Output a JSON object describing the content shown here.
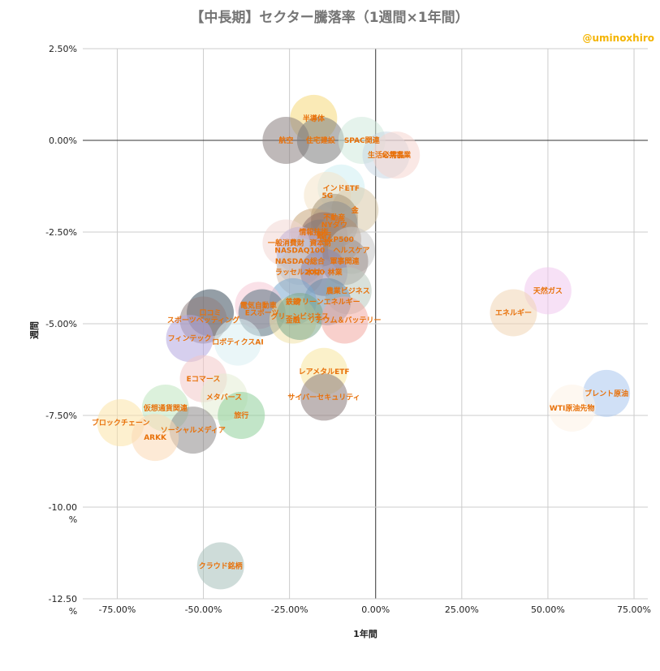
{
  "chart_data": {
    "type": "scatter",
    "title": "【中長期】セクター騰落率（1週間×1年間）",
    "credit": "@uminoxhiro",
    "xlabel": "1年間",
    "ylabel": "週間",
    "xlim": [
      -0.85,
      0.79
    ],
    "ylim": [
      -12.5,
      2.5
    ],
    "xticks": [
      {
        "v": -0.75,
        "label": "-75.00%"
      },
      {
        "v": -0.5,
        "label": "-50.00%"
      },
      {
        "v": -0.25,
        "label": "-25.00%"
      },
      {
        "v": 0.0,
        "label": "0.00%"
      },
      {
        "v": 0.25,
        "label": "25.00%"
      },
      {
        "v": 0.5,
        "label": "50.00%"
      },
      {
        "v": 0.75,
        "label": "75.00%"
      }
    ],
    "yticks": [
      {
        "v": 2.5,
        "label": "2.50%"
      },
      {
        "v": 0,
        "label": "0.00%"
      },
      {
        "v": -2.5,
        "label": "-2.50%"
      },
      {
        "v": -5,
        "label": "-5.00%"
      },
      {
        "v": -7.5,
        "label": "-7.50%"
      },
      {
        "v": -10,
        "label": "-10.00",
        "label2": "%"
      },
      {
        "v": -12.5,
        "label": "-12.50",
        "label2": "%"
      }
    ],
    "points": [
      {
        "label": "半導体",
        "x": -0.18,
        "y": 0.6,
        "color": "#f6d87a"
      },
      {
        "label": "航空",
        "x": -0.26,
        "y": 0.0,
        "color": "#8a7f80"
      },
      {
        "label": "住宅建設",
        "x": -0.16,
        "y": 0.0,
        "color": "#7b7b7b"
      },
      {
        "label": "SPAC関連",
        "x": -0.04,
        "y": 0.0,
        "color": "#cfe9dc"
      },
      {
        "label": "生活必需品",
        "x": 0.03,
        "y": -0.4,
        "color": "#c9d7e4"
      },
      {
        "label": "公共事業",
        "x": 0.06,
        "y": -0.4,
        "color": "#f6d6d0"
      },
      {
        "label": "インドETF",
        "x": -0.1,
        "y": -1.3,
        "color": "#cdeef2"
      },
      {
        "label": "5G",
        "x": -0.14,
        "y": -1.5,
        "color": "#f4e3c8"
      },
      {
        "label": "金",
        "x": -0.06,
        "y": -1.9,
        "color": "#d9c9a7"
      },
      {
        "label": "不動産",
        "x": -0.12,
        "y": -2.1,
        "color": "#a89878"
      },
      {
        "label": "NYダウ",
        "x": -0.12,
        "y": -2.3,
        "color": "#8f8f8f"
      },
      {
        "label": "情報技術",
        "x": -0.18,
        "y": -2.5,
        "color": "#c9a57a"
      },
      {
        "label": "銀行",
        "x": -0.15,
        "y": -2.6,
        "color": "#8f6f6a"
      },
      {
        "label": "資本財",
        "x": -0.16,
        "y": -2.8,
        "color": "#8a7e7a"
      },
      {
        "label": "S&P500",
        "x": -0.11,
        "y": -2.7,
        "color": "#ad8f78"
      },
      {
        "label": "一般消費財",
        "x": -0.26,
        "y": -2.8,
        "color": "#f3d7d3"
      },
      {
        "label": "NASDAQ100",
        "x": -0.22,
        "y": -3.0,
        "color": "#c5b3d6"
      },
      {
        "label": "ヘルスケア",
        "x": -0.07,
        "y": -3.0,
        "color": "#c8c8c8"
      },
      {
        "label": "軍事関連",
        "x": -0.09,
        "y": -3.3,
        "color": "#9c8f8c"
      },
      {
        "label": "NASDAQ総合",
        "x": -0.22,
        "y": -3.3,
        "color": "#b9c8da"
      },
      {
        "label": "ラッセル2000",
        "x": -0.22,
        "y": -3.6,
        "color": "#d0c0b5"
      },
      {
        "label": "木材・林業",
        "x": -0.15,
        "y": -3.6,
        "color": "#8f86a8"
      },
      {
        "label": "農業ビジネス",
        "x": -0.08,
        "y": -4.1,
        "color": "#b9c9be"
      },
      {
        "label": "クリーンエネルギー",
        "x": -0.14,
        "y": -4.4,
        "color": "#6f8ea8"
      },
      {
        "label": "鉄鋼",
        "x": -0.24,
        "y": -4.4,
        "color": "#7baacf"
      },
      {
        "label": "電気自動車",
        "x": -0.34,
        "y": -4.5,
        "color": "#f5c9d6"
      },
      {
        "label": "Eスポーツ",
        "x": -0.33,
        "y": -4.7,
        "color": "#5a7280"
      },
      {
        "label": "口コミ",
        "x": -0.48,
        "y": -4.7,
        "color": "#3c4f5d"
      },
      {
        "label": "スポーツベッティング",
        "x": -0.5,
        "y": -4.9,
        "color": "#8f8080"
      },
      {
        "label": "金融",
        "x": -0.24,
        "y": -4.9,
        "color": "#f0e2a8"
      },
      {
        "label": "グリーンビジネス",
        "x": -0.22,
        "y": -4.8,
        "color": "#7ba88a"
      },
      {
        "label": "リチウム＆バッテリー",
        "x": -0.09,
        "y": -4.9,
        "color": "#f2a9a3"
      },
      {
        "label": "フィンテック",
        "x": -0.54,
        "y": -5.4,
        "color": "#b4a7e0"
      },
      {
        "label": "ロボティクスAI",
        "x": -0.4,
        "y": -5.5,
        "color": "#d9eef2"
      },
      {
        "label": "Eコマース",
        "x": -0.5,
        "y": -6.5,
        "color": "#f3c9c9"
      },
      {
        "label": "レアメタルETF",
        "x": -0.15,
        "y": -6.3,
        "color": "#f7e59e"
      },
      {
        "label": "サイバーセキュリティ",
        "x": -0.15,
        "y": -7.0,
        "color": "#8a7a7a"
      },
      {
        "label": "メタバース",
        "x": -0.44,
        "y": -7.0,
        "color": "#e4ecd4"
      },
      {
        "label": "仮想通貨関連",
        "x": -0.61,
        "y": -7.3,
        "color": "#bfe5bf"
      },
      {
        "label": "旅行",
        "x": -0.39,
        "y": -7.5,
        "color": "#8fd09a"
      },
      {
        "label": "ブロックチェーン",
        "x": -0.74,
        "y": -7.7,
        "color": "#fbe3a8"
      },
      {
        "label": "ソーシャルメディア",
        "x": -0.53,
        "y": -7.9,
        "color": "#8e8a8a"
      },
      {
        "label": "ARKK",
        "x": -0.64,
        "y": -8.1,
        "color": "#fbd9b5"
      },
      {
        "label": "天然ガス",
        "x": 0.5,
        "y": -4.1,
        "color": "#f1c8ee"
      },
      {
        "label": "エネルギー",
        "x": 0.4,
        "y": -4.7,
        "color": "#f1d6b4"
      },
      {
        "label": "ブレント原油",
        "x": 0.67,
        "y": -6.9,
        "color": "#a9c6ef"
      },
      {
        "label": "WTI原油先物",
        "x": 0.57,
        "y": -7.3,
        "color": "#fdf3e6"
      },
      {
        "label": "クラウド銘柄",
        "x": -0.45,
        "y": -11.6,
        "color": "#a6bfb9"
      }
    ]
  }
}
